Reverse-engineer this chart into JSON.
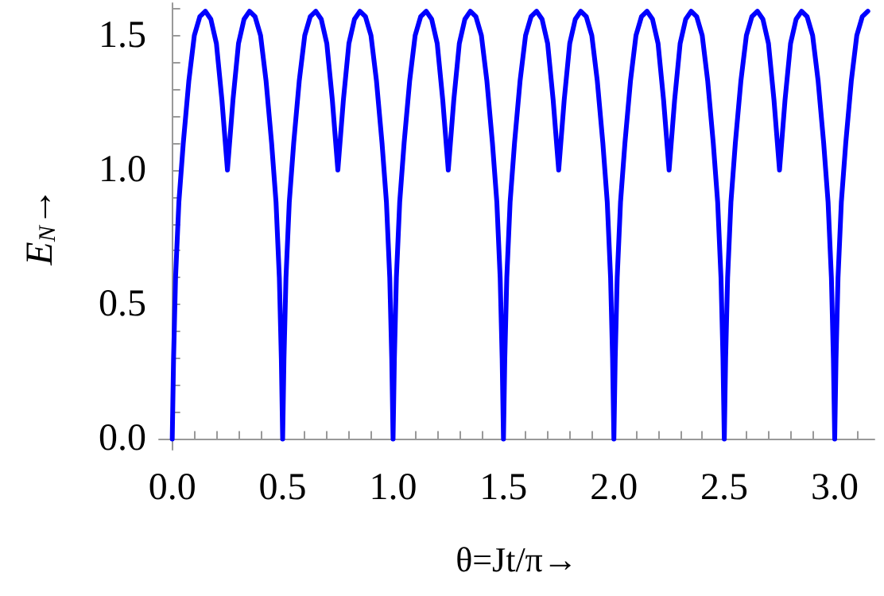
{
  "chart_data": {
    "type": "line",
    "xlabel": "θ=Jt/π→",
    "ylabel": "E$_{N}$→",
    "x": [
      0,
      0.006,
      0.015,
      0.03,
      0.05,
      0.075,
      0.1,
      0.125,
      0.15,
      0.175,
      0.2,
      0.225,
      0.25,
      0.275,
      0.3,
      0.325,
      0.35,
      0.375,
      0.4,
      0.425,
      0.45,
      0.47,
      0.485,
      0.494,
      0.5,
      0.506,
      0.515,
      0.53,
      0.55,
      0.575,
      0.6,
      0.625,
      0.65,
      0.675,
      0.7,
      0.725,
      0.75,
      0.775,
      0.8,
      0.825,
      0.85,
      0.875,
      0.9,
      0.925,
      0.95,
      0.97,
      0.985,
      0.994,
      1,
      1.006,
      1.015,
      1.03,
      1.05,
      1.075,
      1.1,
      1.125,
      1.15,
      1.175,
      1.2,
      1.225,
      1.25,
      1.275,
      1.3,
      1.325,
      1.35,
      1.375,
      1.4,
      1.425,
      1.45,
      1.47,
      1.485,
      1.494,
      1.5,
      1.506,
      1.515,
      1.53,
      1.55,
      1.575,
      1.6,
      1.625,
      1.65,
      1.675,
      1.7,
      1.725,
      1.75,
      1.775,
      1.8,
      1.825,
      1.85,
      1.875,
      1.9,
      1.925,
      1.95,
      1.97,
      1.985,
      1.994,
      2,
      2.006,
      2.015,
      2.03,
      2.05,
      2.075,
      2.1,
      2.125,
      2.15,
      2.175,
      2.2,
      2.225,
      2.25,
      2.275,
      2.3,
      2.325,
      2.35,
      2.375,
      2.4,
      2.425,
      2.45,
      2.47,
      2.485,
      2.494,
      2.5,
      2.506,
      2.515,
      2.53,
      2.55,
      2.575,
      2.6,
      2.625,
      2.65,
      2.675,
      2.7,
      2.725,
      2.75,
      2.775,
      2.8,
      2.825,
      2.85,
      2.875,
      2.9,
      2.925,
      2.95,
      2.97,
      2.985,
      2.994,
      3,
      3.006,
      3.015,
      3.03,
      3.05,
      3.075,
      3.1,
      3.125,
      3.15
    ],
    "series": [
      {
        "color": "#0000ff",
        "values": [
          0,
          0.3,
          0.6,
          0.88,
          1.1,
          1.33,
          1.5,
          1.57,
          1.59,
          1.56,
          1.47,
          1.26,
          1.0,
          1.26,
          1.47,
          1.56,
          1.59,
          1.57,
          1.5,
          1.33,
          1.1,
          0.88,
          0.6,
          0.3,
          0,
          0.3,
          0.6,
          0.88,
          1.1,
          1.33,
          1.5,
          1.57,
          1.59,
          1.56,
          1.47,
          1.26,
          1.0,
          1.26,
          1.47,
          1.56,
          1.59,
          1.57,
          1.5,
          1.33,
          1.1,
          0.88,
          0.6,
          0.3,
          0,
          0.3,
          0.6,
          0.88,
          1.1,
          1.33,
          1.5,
          1.57,
          1.59,
          1.56,
          1.47,
          1.26,
          1.0,
          1.26,
          1.47,
          1.56,
          1.59,
          1.57,
          1.5,
          1.33,
          1.1,
          0.88,
          0.6,
          0.3,
          0,
          0.3,
          0.6,
          0.88,
          1.1,
          1.33,
          1.5,
          1.57,
          1.59,
          1.56,
          1.47,
          1.26,
          1.0,
          1.26,
          1.47,
          1.56,
          1.59,
          1.57,
          1.5,
          1.33,
          1.1,
          0.88,
          0.6,
          0.3,
          0,
          0.3,
          0.6,
          0.88,
          1.1,
          1.33,
          1.5,
          1.57,
          1.59,
          1.56,
          1.47,
          1.26,
          1.0,
          1.26,
          1.47,
          1.56,
          1.59,
          1.57,
          1.5,
          1.33,
          1.1,
          0.88,
          0.6,
          0.3,
          0,
          0.3,
          0.6,
          0.88,
          1.1,
          1.33,
          1.5,
          1.57,
          1.59,
          1.56,
          1.47,
          1.26,
          1.0,
          1.26,
          1.47,
          1.56,
          1.59,
          1.57,
          1.5,
          1.33,
          1.1,
          0.88,
          0.6,
          0.3,
          0,
          0.3,
          0.6,
          0.88,
          1.1,
          1.33,
          1.5,
          1.57,
          1.59
        ]
      }
    ],
    "xlim": [
      -0.06,
      3.18
    ],
    "xticks": [
      {
        "value": 0,
        "label": "0.0"
      },
      {
        "value": 0.1,
        "label": null
      },
      {
        "value": 0.2,
        "label": null
      },
      {
        "value": 0.3,
        "label": null
      },
      {
        "value": 0.4,
        "label": null
      },
      {
        "value": 0.5,
        "label": "0.5"
      },
      {
        "value": 0.6,
        "label": null
      },
      {
        "value": 0.7,
        "label": null
      },
      {
        "value": 0.8,
        "label": null
      },
      {
        "value": 0.9,
        "label": null
      },
      {
        "value": 1,
        "label": "1.0"
      },
      {
        "value": 1.1,
        "label": null
      },
      {
        "value": 1.2,
        "label": null
      },
      {
        "value": 1.3,
        "label": null
      },
      {
        "value": 1.4,
        "label": null
      },
      {
        "value": 1.5,
        "label": "1.5"
      },
      {
        "value": 1.6,
        "label": null
      },
      {
        "value": 1.7,
        "label": null
      },
      {
        "value": 1.8,
        "label": null
      },
      {
        "value": 1.9,
        "label": null
      },
      {
        "value": 2,
        "label": "2.0"
      },
      {
        "value": 2.1,
        "label": null
      },
      {
        "value": 2.2,
        "label": null
      },
      {
        "value": 2.3,
        "label": null
      },
      {
        "value": 2.4,
        "label": null
      },
      {
        "value": 2.5,
        "label": "2.5"
      },
      {
        "value": 2.6,
        "label": null
      },
      {
        "value": 2.7,
        "label": null
      },
      {
        "value": 2.8,
        "label": null
      },
      {
        "value": 2.9,
        "label": null
      },
      {
        "value": 3,
        "label": "3.0"
      },
      {
        "value": 3.1,
        "label": null
      }
    ],
    "ylim": [
      -0.04,
      1.62
    ],
    "yticks": [
      {
        "value": 0,
        "label": "0.0"
      },
      {
        "value": 0.1,
        "label": null
      },
      {
        "value": 0.2,
        "label": null
      },
      {
        "value": 0.3,
        "label": null
      },
      {
        "value": 0.4,
        "label": null
      },
      {
        "value": 0.5,
        "label": "0.5"
      },
      {
        "value": 0.6,
        "label": null
      },
      {
        "value": 0.7,
        "label": null
      },
      {
        "value": 0.8,
        "label": null
      },
      {
        "value": 0.9,
        "label": null
      },
      {
        "value": 1,
        "label": "1.0"
      },
      {
        "value": 1.1,
        "label": null
      },
      {
        "value": 1.2,
        "label": null
      },
      {
        "value": 1.3,
        "label": null
      },
      {
        "value": 1.4,
        "label": null
      },
      {
        "value": 1.5,
        "label": "1.5"
      },
      {
        "value": 1.6,
        "label": null
      }
    ],
    "marker": "none",
    "line_style": "solid"
  }
}
